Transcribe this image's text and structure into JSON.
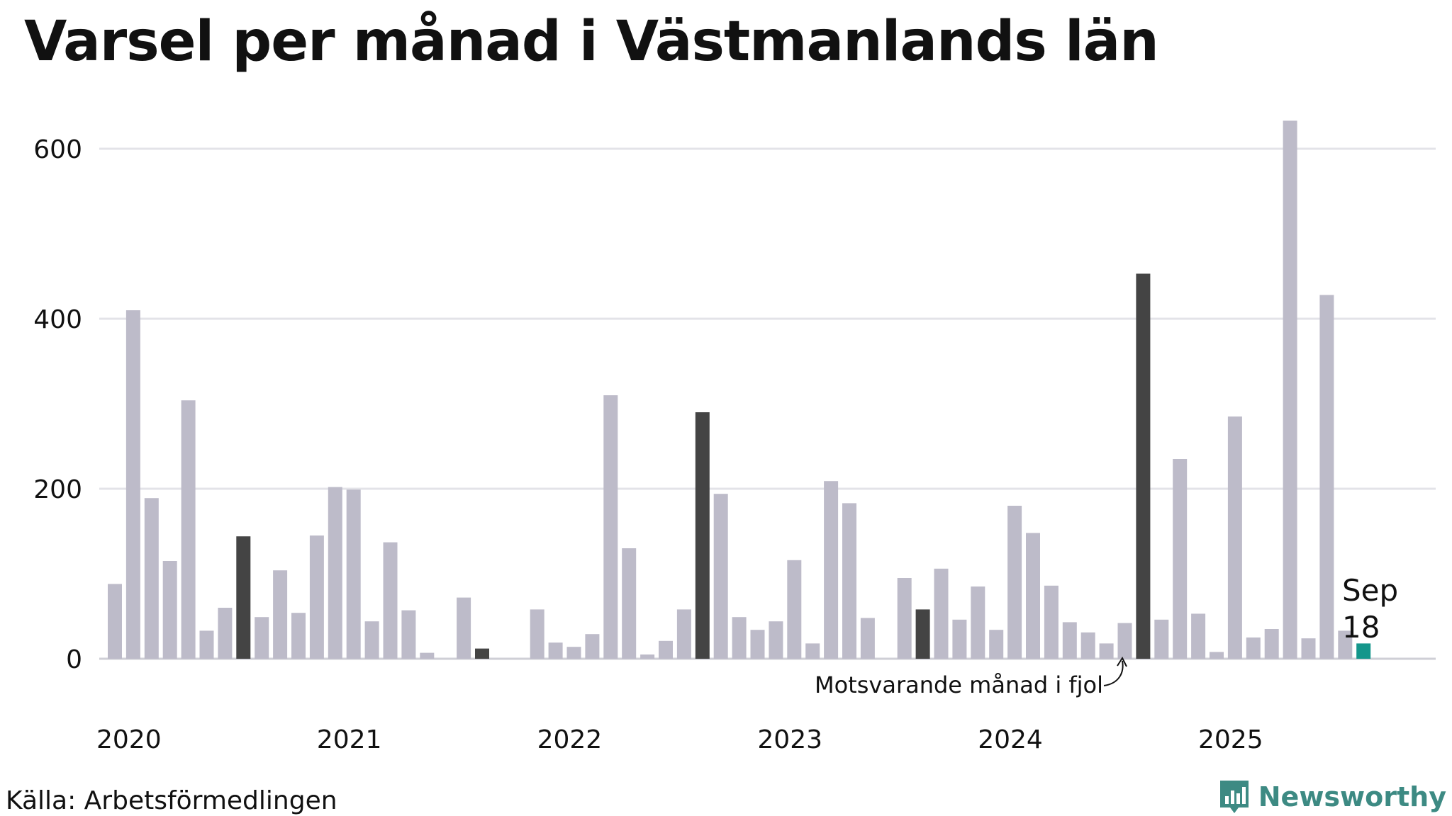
{
  "title": "Varsel per månad i Västmanlands län",
  "source": "Källa: Arbetsförmedlingen",
  "brand": "Newsworthy",
  "colors": {
    "bar": "#bdbbc9",
    "highlight": "#444444",
    "current": "#14968b",
    "grid": "#e3e3e8",
    "brand": "#3d8a83"
  },
  "chart_data": {
    "type": "bar",
    "title": "Varsel per månad i Västmanlands län",
    "xlabel": "",
    "ylabel": "",
    "ylim": [
      0,
      650
    ],
    "yticks": [
      0,
      200,
      400,
      600
    ],
    "year_labels": [
      "2020",
      "2021",
      "2022",
      "2023",
      "2024",
      "2025"
    ],
    "start": "2020-01",
    "values": [
      88,
      410,
      189,
      115,
      304,
      33,
      60,
      144,
      49,
      104,
      54,
      145,
      202,
      199,
      44,
      137,
      57,
      7,
      0,
      72,
      12,
      0,
      0,
      58,
      19,
      14,
      29,
      310,
      130,
      5,
      21,
      58,
      290,
      194,
      49,
      34,
      44,
      116,
      18,
      209,
      183,
      48,
      0,
      95,
      58,
      106,
      46,
      85,
      34,
      180,
      148,
      86,
      43,
      31,
      18,
      42,
      453,
      46,
      235,
      53,
      8,
      285,
      25,
      35,
      633,
      24,
      428,
      33,
      18
    ],
    "highlight_months": [
      "2020-08",
      "2021-09",
      "2022-09",
      "2023-09",
      "2024-09"
    ],
    "current": {
      "label": "Sep",
      "value": "18"
    },
    "annotation": "Motsvarande månad i fjol"
  }
}
